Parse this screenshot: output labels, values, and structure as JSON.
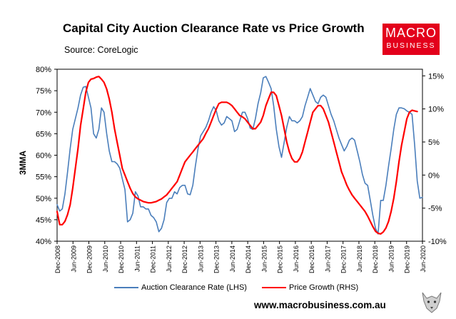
{
  "header": {
    "title": "Capital City Auction Clearance Rate vs Price Growth",
    "source": "Source: CoreLogic",
    "logo_line1": "MACRO",
    "logo_line2": "BUSINESS"
  },
  "footer": {
    "website": "www.macrobusiness.com.au"
  },
  "colors": {
    "lhs_series": "#4a7ebb",
    "rhs_series": "#ff0000",
    "logo_bg": "#e3001b"
  },
  "chart_data": {
    "type": "line",
    "title": "Capital City Auction Clearance Rate vs Price Growth",
    "ylabel": "3MMA",
    "x_tick_labels": [
      "Dec-2008",
      "Jun-2009",
      "Dec-2009",
      "Jun-2010",
      "Dec-2010",
      "Jun-2011",
      "Dec-2011",
      "Jun-2012",
      "Dec-2012",
      "Jun-2013",
      "Dec-2013",
      "Jun-2014",
      "Dec-2014",
      "Jun-2015",
      "Dec-2015",
      "Jun-2016",
      "Dec-2016",
      "Jun-2017",
      "Dec-2017",
      "Jun-2018",
      "Dec-2018",
      "Jun-2019",
      "Dec-2019",
      "Jun-2020"
    ],
    "y_left": {
      "min": 40,
      "max": 80,
      "ticks": [
        "40%",
        "45%",
        "50%",
        "55%",
        "60%",
        "65%",
        "70%",
        "75%",
        "80%"
      ]
    },
    "y_right": {
      "min": -10,
      "max": 16,
      "ticks": [
        "-10%",
        "-5%",
        "0%",
        "5%",
        "10%",
        "15%"
      ],
      "tick_values": [
        -10,
        -5,
        0,
        5,
        10,
        15
      ]
    },
    "legend": [
      "Auction Clearance Rate (LHS)",
      "Price Growth (RHS)"
    ],
    "series": [
      {
        "name": "Auction Clearance Rate (LHS)",
        "axis": "left",
        "points": [
          [
            0,
            48.5
          ],
          [
            0.5,
            47
          ],
          [
            1,
            47.5
          ],
          [
            1.5,
            51
          ],
          [
            2,
            56
          ],
          [
            2.5,
            61.5
          ],
          [
            3,
            66
          ],
          [
            3.5,
            68.5
          ],
          [
            4,
            71
          ],
          [
            4.5,
            74
          ],
          [
            5,
            75.8
          ],
          [
            5.5,
            76
          ],
          [
            6,
            73.5
          ],
          [
            6.5,
            71
          ],
          [
            7,
            65
          ],
          [
            7.5,
            64
          ],
          [
            8,
            66
          ],
          [
            8.5,
            71
          ],
          [
            9,
            70
          ],
          [
            9.5,
            65
          ],
          [
            10,
            61
          ],
          [
            10.5,
            58.5
          ],
          [
            11,
            58.5
          ],
          [
            11.5,
            58
          ],
          [
            12,
            57
          ],
          [
            12.5,
            54.5
          ],
          [
            13,
            52
          ],
          [
            13.5,
            44.5
          ],
          [
            14,
            45
          ],
          [
            14.5,
            46.5
          ],
          [
            15,
            51.5
          ],
          [
            15.5,
            50.5
          ],
          [
            16,
            48
          ],
          [
            16.5,
            48
          ],
          [
            17,
            47.5
          ],
          [
            17.5,
            47.5
          ],
          [
            18,
            46
          ],
          [
            18.5,
            45.5
          ],
          [
            19,
            44.5
          ],
          [
            19.5,
            42.2
          ],
          [
            20,
            43
          ],
          [
            20.5,
            45
          ],
          [
            21,
            49
          ],
          [
            21.5,
            50
          ],
          [
            22,
            50
          ],
          [
            22.5,
            51.5
          ],
          [
            23,
            51
          ],
          [
            23.5,
            52.5
          ],
          [
            24,
            53
          ],
          [
            24.5,
            53
          ],
          [
            25,
            51
          ],
          [
            25.5,
            50.8
          ],
          [
            26,
            53
          ],
          [
            26.5,
            57.5
          ],
          [
            27,
            61.5
          ],
          [
            27.5,
            64.5
          ],
          [
            28,
            65.5
          ],
          [
            28.5,
            66.5
          ],
          [
            29,
            68
          ],
          [
            29.5,
            70
          ],
          [
            30,
            71.3
          ],
          [
            30.5,
            70.3
          ],
          [
            31,
            68
          ],
          [
            31.5,
            67
          ],
          [
            32,
            67.5
          ],
          [
            32.5,
            69
          ],
          [
            33,
            68.5
          ],
          [
            33.5,
            68
          ],
          [
            34,
            65.5
          ],
          [
            34.5,
            66
          ],
          [
            35,
            68
          ],
          [
            35.5,
            70
          ],
          [
            36,
            70
          ],
          [
            36.5,
            68.5
          ],
          [
            37,
            66.3
          ],
          [
            37.5,
            66
          ],
          [
            38,
            68.5
          ],
          [
            38.5,
            72
          ],
          [
            39,
            74.5
          ],
          [
            39.5,
            78
          ],
          [
            40,
            78.3
          ],
          [
            40.5,
            77
          ],
          [
            41,
            75.5
          ],
          [
            41.5,
            71.5
          ],
          [
            42,
            66
          ],
          [
            42.5,
            62
          ],
          [
            43,
            59.5
          ],
          [
            43.5,
            63
          ],
          [
            44,
            66.5
          ],
          [
            44.5,
            69
          ],
          [
            45,
            68
          ],
          [
            45.5,
            68
          ],
          [
            46,
            67.5
          ],
          [
            46.5,
            68
          ],
          [
            47,
            69
          ],
          [
            47.5,
            71.5
          ],
          [
            48,
            73.5
          ],
          [
            48.5,
            75.5
          ],
          [
            49,
            74
          ],
          [
            49.5,
            72.5
          ],
          [
            50,
            72
          ],
          [
            50.5,
            73.5
          ],
          [
            51,
            74
          ],
          [
            51.5,
            73.5
          ],
          [
            52,
            71.5
          ],
          [
            52.5,
            69.5
          ],
          [
            53,
            68
          ],
          [
            53.5,
            66
          ],
          [
            54,
            64
          ],
          [
            54.5,
            62.5
          ],
          [
            55,
            61
          ],
          [
            55.5,
            62
          ],
          [
            56,
            63.5
          ],
          [
            56.5,
            64
          ],
          [
            57,
            63.5
          ],
          [
            57.5,
            61
          ],
          [
            58,
            58.5
          ],
          [
            58.5,
            55.5
          ],
          [
            59,
            53.5
          ],
          [
            59.5,
            53
          ],
          [
            60,
            49.5
          ],
          [
            60.5,
            46
          ],
          [
            61,
            43
          ],
          [
            61.5,
            41.7
          ],
          [
            62,
            49.5
          ],
          [
            62.5,
            49.5
          ],
          [
            63,
            53
          ],
          [
            63.5,
            57.5
          ],
          [
            64,
            61.5
          ],
          [
            64.5,
            66
          ],
          [
            65,
            69.5
          ],
          [
            65.5,
            71
          ],
          [
            66,
            71
          ],
          [
            66.5,
            70.8
          ],
          [
            67,
            70.3
          ],
          [
            67.5,
            70
          ],
          [
            68,
            69.5
          ],
          [
            68.5,
            62.5
          ],
          [
            69,
            54
          ],
          [
            69.5,
            50
          ],
          [
            70,
            50.2
          ]
        ]
      },
      {
        "name": "Price Growth (RHS)",
        "axis": "right",
        "points": [
          [
            0,
            -5.5
          ],
          [
            0.5,
            -7.5
          ],
          [
            1,
            -7.5
          ],
          [
            1.5,
            -7
          ],
          [
            2,
            -6
          ],
          [
            2.5,
            -4.5
          ],
          [
            3,
            -2
          ],
          [
            3.5,
            1
          ],
          [
            4,
            4
          ],
          [
            4.5,
            7.5
          ],
          [
            5,
            10
          ],
          [
            5.5,
            12.5
          ],
          [
            6,
            14
          ],
          [
            6.5,
            14.5
          ],
          [
            7,
            14.6
          ],
          [
            7.5,
            14.8
          ],
          [
            8,
            14.9
          ],
          [
            8.5,
            14.5
          ],
          [
            9,
            14
          ],
          [
            9.5,
            13
          ],
          [
            10,
            11.5
          ],
          [
            10.5,
            9.5
          ],
          [
            11,
            7
          ],
          [
            11.5,
            5
          ],
          [
            12,
            3
          ],
          [
            12.5,
            1
          ],
          [
            13,
            0
          ],
          [
            13.5,
            -1
          ],
          [
            14,
            -2
          ],
          [
            14.5,
            -2.8
          ],
          [
            15,
            -3.3
          ],
          [
            15.5,
            -3.6
          ],
          [
            16,
            -3.8
          ],
          [
            16.5,
            -4
          ],
          [
            17,
            -4.1
          ],
          [
            17.5,
            -4.2
          ],
          [
            18,
            -4.2
          ],
          [
            18.5,
            -4.1
          ],
          [
            19,
            -4
          ],
          [
            19.5,
            -3.8
          ],
          [
            20,
            -3.6
          ],
          [
            20.5,
            -3.3
          ],
          [
            21,
            -3
          ],
          [
            21.5,
            -2.5
          ],
          [
            22,
            -2
          ],
          [
            22.5,
            -1.5
          ],
          [
            23,
            -1
          ],
          [
            23.5,
            0
          ],
          [
            24,
            1
          ],
          [
            24.5,
            2
          ],
          [
            25,
            2.5
          ],
          [
            25.5,
            3
          ],
          [
            26,
            3.5
          ],
          [
            26.5,
            4
          ],
          [
            27,
            4.5
          ],
          [
            27.5,
            5
          ],
          [
            28,
            5.5
          ],
          [
            28.5,
            6.3
          ],
          [
            29,
            7
          ],
          [
            29.5,
            8
          ],
          [
            30,
            9
          ],
          [
            30.5,
            10
          ],
          [
            31,
            10.8
          ],
          [
            31.5,
            11
          ],
          [
            32,
            11
          ],
          [
            32.5,
            11
          ],
          [
            33,
            10.8
          ],
          [
            33.5,
            10.5
          ],
          [
            34,
            10
          ],
          [
            34.5,
            9.5
          ],
          [
            35,
            9
          ],
          [
            35.5,
            8.8
          ],
          [
            36,
            8.5
          ],
          [
            36.5,
            8
          ],
          [
            37,
            7.5
          ],
          [
            37.5,
            7
          ],
          [
            38,
            7
          ],
          [
            38.5,
            7.5
          ],
          [
            39,
            8
          ],
          [
            39.5,
            9
          ],
          [
            40,
            10.5
          ],
          [
            40.5,
            11.5
          ],
          [
            41,
            12.5
          ],
          [
            41.5,
            12.5
          ],
          [
            42,
            12
          ],
          [
            42.5,
            10.5
          ],
          [
            43,
            9
          ],
          [
            43.5,
            7
          ],
          [
            44,
            5
          ],
          [
            44.5,
            3.5
          ],
          [
            45,
            2.5
          ],
          [
            45.5,
            2
          ],
          [
            46,
            2
          ],
          [
            46.5,
            2.5
          ],
          [
            47,
            3.5
          ],
          [
            47.5,
            5
          ],
          [
            48,
            6.5
          ],
          [
            48.5,
            8
          ],
          [
            49,
            9.5
          ],
          [
            49.5,
            10
          ],
          [
            50,
            10.5
          ],
          [
            50.5,
            10.5
          ],
          [
            51,
            10
          ],
          [
            51.5,
            9
          ],
          [
            52,
            8
          ],
          [
            52.5,
            6.5
          ],
          [
            53,
            5
          ],
          [
            53.5,
            3.5
          ],
          [
            54,
            2
          ],
          [
            54.5,
            0.5
          ],
          [
            55,
            -0.5
          ],
          [
            55.5,
            -1.5
          ],
          [
            56,
            -2.3
          ],
          [
            56.5,
            -3
          ],
          [
            57,
            -3.5
          ],
          [
            57.5,
            -4
          ],
          [
            58,
            -4.5
          ],
          [
            58.5,
            -5
          ],
          [
            59,
            -5.5
          ],
          [
            59.5,
            -6.2
          ],
          [
            60,
            -7
          ],
          [
            60.5,
            -7.8
          ],
          [
            61,
            -8.5
          ],
          [
            61.5,
            -8.8
          ],
          [
            62,
            -8.9
          ],
          [
            62.5,
            -8.6
          ],
          [
            63,
            -8
          ],
          [
            63.5,
            -7
          ],
          [
            64,
            -5.5
          ],
          [
            64.5,
            -3.5
          ],
          [
            65,
            -1
          ],
          [
            65.5,
            2
          ],
          [
            66,
            4.5
          ],
          [
            66.5,
            6.5
          ],
          [
            67,
            8.5
          ],
          [
            67.5,
            9.5
          ],
          [
            68,
            9.8
          ],
          [
            68.5,
            9.7
          ],
          [
            69,
            9.6
          ]
        ]
      }
    ]
  }
}
